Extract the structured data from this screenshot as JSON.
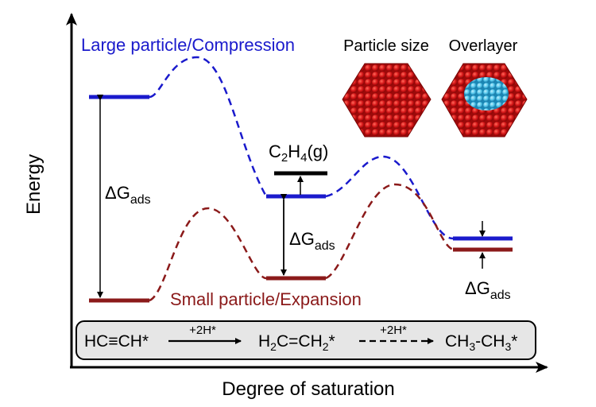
{
  "axes": {
    "ylabel": "Energy",
    "xlabel": "Degree of saturation"
  },
  "labels": {
    "large": "Large particle/Compression",
    "small": "Small particle/Expansion",
    "particle_size": "Particle size",
    "overlayer": "Overlayer",
    "delta": "ΔG",
    "ads": "ads",
    "c2h4_a": "C",
    "c2h4_b": "2",
    "c2h4_c": "H",
    "c2h4_d": "4",
    "c2h4_e": "(g)"
  },
  "reaction": {
    "s1": "HC≡CH*",
    "arrow1": "+2H*",
    "s2a": "H",
    "s2b": "2",
    "s2c": "C=CH",
    "s2d": "2",
    "s2e": "*",
    "arrow2": "+2H*",
    "s3a": "CH",
    "s3b": "3",
    "s3c": "-CH",
    "s3d": "3",
    "s3e": "*"
  },
  "colors": {
    "large": "#1a1acc",
    "small": "#8b1a1a",
    "particle": "#cc1414",
    "overlayer": "#4fc3e8"
  }
}
